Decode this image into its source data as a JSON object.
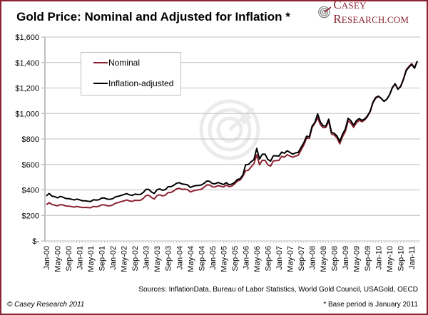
{
  "header": {
    "title": "Gold Price: Nominal and Adjusted for Inflation *",
    "logo_initial_c": "C",
    "logo_rest1": "ASEY ",
    "logo_initial_r": "R",
    "logo_rest2": "ESEARCH.COM"
  },
  "footer": {
    "sources": "Sources: InflationData, Bureau of Labor Statistics, World Gold Council, USAGold, OECD",
    "copyright": "© Casey Research 2011",
    "footnote": "* Base period is January 2011"
  },
  "colors": {
    "frame": "#8b2331",
    "nominal": "#8b2331",
    "adjusted": "#000000",
    "grid": "#bfbfbf"
  },
  "chart_data": {
    "type": "line",
    "title": "Gold Price: Nominal and Adjusted for Inflation *",
    "xlabel": "",
    "ylabel": "",
    "ylim": [
      0,
      1600
    ],
    "yticks": [
      0,
      200,
      400,
      600,
      800,
      1000,
      1200,
      1400,
      1600
    ],
    "ytick_labels": [
      "$-",
      "$200",
      "$400",
      "$600",
      "$800",
      "$1,000",
      "$1,200",
      "$1,400",
      "$1,600"
    ],
    "grid": true,
    "legend_position": "top-left",
    "x_start": "Jan-00",
    "x_end": "Jan-11",
    "x_frequency": "monthly",
    "xtick_labels": [
      "Jan-00",
      "May-00",
      "Sep-00",
      "Jan-01",
      "May-01",
      "Sep-01",
      "Jan-02",
      "May-02",
      "Sep-02",
      "Jan-03",
      "May-03",
      "Sep-03",
      "Jan-04",
      "May-04",
      "Sep-04",
      "Jan-05",
      "May-05",
      "Sep-05",
      "Jan-06",
      "May-06",
      "Sep-06",
      "Jan-07",
      "May-07",
      "Sep-07",
      "Jan-08",
      "May-08",
      "Sep-08",
      "Jan-09",
      "May-09",
      "Sep-09",
      "Jan-10",
      "May-10",
      "Sep-10",
      "Jan-11"
    ],
    "series": [
      {
        "name": "Nominal",
        "values": [
          284,
          300,
          286,
          280,
          275,
          285,
          282,
          274,
          273,
          270,
          265,
          271,
          266,
          262,
          263,
          261,
          260,
          271,
          268,
          272,
          283,
          283,
          276,
          275,
          282,
          296,
          301,
          308,
          314,
          321,
          314,
          310,
          319,
          317,
          319,
          333,
          357,
          358,
          340,
          329,
          356,
          362,
          353,
          359,
          380,
          380,
          392,
          408,
          413,
          405,
          406,
          403,
          384,
          392,
          398,
          401,
          406,
          421,
          440,
          439,
          424,
          423,
          434,
          429,
          423,
          438,
          425,
          431,
          447,
          470,
          477,
          508,
          550,
          555,
          582,
          607,
          675,
          597,
          633,
          632,
          598,
          587,
          627,
          630,
          632,
          664,
          657,
          677,
          666,
          656,
          666,
          672,
          713,
          753,
          806,
          805,
          890,
          923,
          968,
          912,
          889,
          890,
          940,
          839,
          830,
          807,
          762,
          818,
          858,
          943,
          925,
          891,
          927,
          946,
          935,
          949,
          975,
          1015,
          1085,
          1120,
          1134,
          1117,
          1095,
          1113,
          1149,
          1205,
          1234,
          1193,
          1215,
          1271,
          1343,
          1370,
          1391,
          1360,
          1411
        ]
      },
      {
        "name": "Inflation-adjusted",
        "values": [
          353,
          372,
          352,
          347,
          338,
          349,
          343,
          333,
          331,
          328,
          321,
          328,
          322,
          315,
          315,
          311,
          309,
          323,
          320,
          323,
          336,
          336,
          328,
          326,
          332,
          346,
          350,
          357,
          364,
          371,
          362,
          357,
          367,
          364,
          365,
          380,
          405,
          404,
          383,
          372,
          402,
          408,
          397,
          403,
          426,
          425,
          436,
          452,
          457,
          447,
          444,
          440,
          419,
          429,
          434,
          435,
          439,
          452,
          470,
          467,
          450,
          448,
          458,
          451,
          442,
          457,
          441,
          446,
          459,
          482,
          488,
          518,
          598,
          600,
          622,
          638,
          726,
          642,
          680,
          680,
          640,
          626,
          668,
          668,
          666,
          697,
          688,
          707,
          694,
          681,
          691,
          694,
          733,
          770,
          822,
          818,
          900,
          929,
          997,
          932,
          903,
          902,
          955,
          852,
          844,
          823,
          780,
          838,
          877,
          962,
          943,
          908,
          944,
          960,
          946,
          957,
          981,
          1019,
          1090,
          1126,
          1136,
          1117,
          1096,
          1112,
          1148,
          1203,
          1232,
          1190,
          1212,
          1267,
          1337,
          1364,
          1386,
          1355,
          1411
        ]
      }
    ]
  }
}
